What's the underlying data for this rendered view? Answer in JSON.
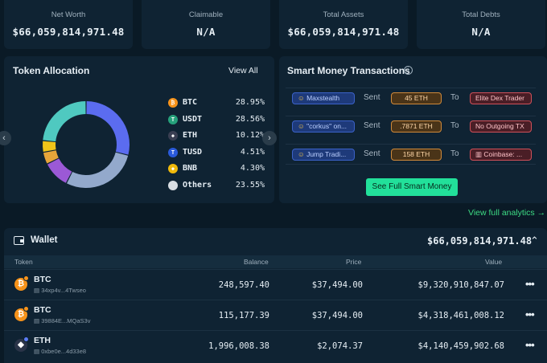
{
  "stats": [
    {
      "label": "Net Worth",
      "value": "$66,059,814,971.48"
    },
    {
      "label": "Claimable",
      "value": "N/A"
    },
    {
      "label": "Total Assets",
      "value": "$66,059,814,971.48"
    },
    {
      "label": "Total Debts",
      "value": "N/A"
    }
  ],
  "allocation": {
    "title": "Token Allocation",
    "view_all": "View All",
    "items": [
      {
        "symbol": "BTC",
        "pct": "28.95%",
        "value": 28.95,
        "color": "#5b6cf0",
        "icon": "btc-icon",
        "glyph": "₿",
        "icon_bg": "#f7931a"
      },
      {
        "symbol": "USDT",
        "pct": "28.56%",
        "value": 28.56,
        "color": "#93a9cc",
        "icon": "usdt-icon",
        "glyph": "T",
        "icon_bg": "#26a17b"
      },
      {
        "symbol": "ETH",
        "pct": "10.12%",
        "value": 10.12,
        "color": "#9b59d6",
        "icon": "eth-icon",
        "glyph": "◆",
        "icon_bg": "#3a3f52"
      },
      {
        "symbol": "TUSD",
        "pct": "4.51%",
        "value": 4.51,
        "color": "#e8a53a",
        "icon": "tusd-icon",
        "glyph": "T",
        "icon_bg": "#2a5ada"
      },
      {
        "symbol": "BNB",
        "pct": "4.30%",
        "value": 4.3,
        "color": "#f0c419",
        "icon": "bnb-icon",
        "glyph": "◆",
        "icon_bg": "#f0b90b"
      },
      {
        "symbol": "Others",
        "pct": "23.55%",
        "value": 23.55,
        "color": "#4fc9c0",
        "icon": "others-icon",
        "glyph": "",
        "icon_bg": "#d8dde2"
      }
    ],
    "prev_arrow": "‹",
    "next_arrow": "›"
  },
  "smart_money": {
    "title": "Smart Money Transactions",
    "info_icon": "i",
    "rows": [
      {
        "from": "Maxstealth",
        "sent": "Sent",
        "amount": "45 ETH",
        "to": "To",
        "dest": "Elite Dex Trader"
      },
      {
        "from": "\"corkus\" on...",
        "sent": "Sent",
        "amount": ".7871 ETH",
        "to": "To",
        "dest": "No Outgoing TX"
      },
      {
        "from": "Jump Tradi...",
        "sent": "Sent",
        "amount": "158 ETH",
        "to": "To",
        "dest": "Coinbase: ..."
      }
    ],
    "button": "See Full Smart Money",
    "analytics_link": "View full analytics →"
  },
  "wallet": {
    "title": "Wallet",
    "total": "$66,059,814,971.48",
    "collapse_icon": "⌃",
    "columns": [
      "Token",
      "Balance",
      "Price",
      "Value"
    ],
    "rows": [
      {
        "symbol": "BTC",
        "address": "34xp4v...4Twseo",
        "balance": "248,597.40",
        "price": "$37,494.00",
        "value": "$9,320,910,847.07",
        "glyph": "₿",
        "icon_bg": "#f7931a"
      },
      {
        "symbol": "BTC",
        "address": "39884E...MQaS3v",
        "balance": "115,177.39",
        "price": "$37,494.00",
        "value": "$4,318,461,008.12",
        "glyph": "₿",
        "icon_bg": "#f7931a"
      },
      {
        "symbol": "ETH",
        "address": "0xbe0e...4d33e8",
        "balance": "1,996,008.38",
        "price": "$2,074.37",
        "value": "$4,140,459,902.68",
        "glyph": "◆",
        "icon_bg": "#2a3448"
      }
    ],
    "more_icon": "•••"
  }
}
